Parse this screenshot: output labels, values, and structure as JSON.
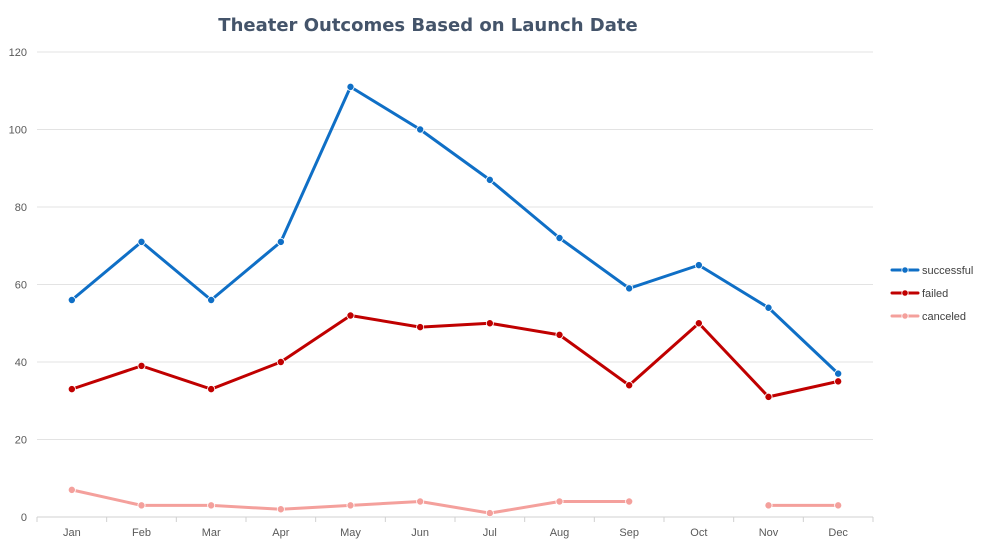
{
  "chart_data": {
    "type": "line",
    "title": "Theater Outcomes Based on Launch Date",
    "xlabel": "",
    "ylabel": "",
    "categories": [
      "Jan",
      "Feb",
      "Mar",
      "Apr",
      "May",
      "Jun",
      "Jul",
      "Aug",
      "Sep",
      "Oct",
      "Nov",
      "Dec"
    ],
    "ylim": [
      0,
      120
    ],
    "yticks": [
      0,
      20,
      40,
      60,
      80,
      100,
      120
    ],
    "grid": true,
    "legend_position": "right",
    "series": [
      {
        "name": "successful",
        "color": "#0f6fc6",
        "values": [
          56,
          71,
          56,
          71,
          111,
          100,
          87,
          72,
          59,
          65,
          54,
          37
        ]
      },
      {
        "name": "failed",
        "color": "#c00000",
        "values": [
          33,
          39,
          33,
          40,
          52,
          49,
          50,
          47,
          34,
          50,
          31,
          35
        ]
      },
      {
        "name": "canceled",
        "color": "#f4a09c",
        "values": [
          7,
          3,
          3,
          2,
          3,
          4,
          1,
          4,
          4,
          null,
          3,
          3
        ]
      }
    ]
  }
}
